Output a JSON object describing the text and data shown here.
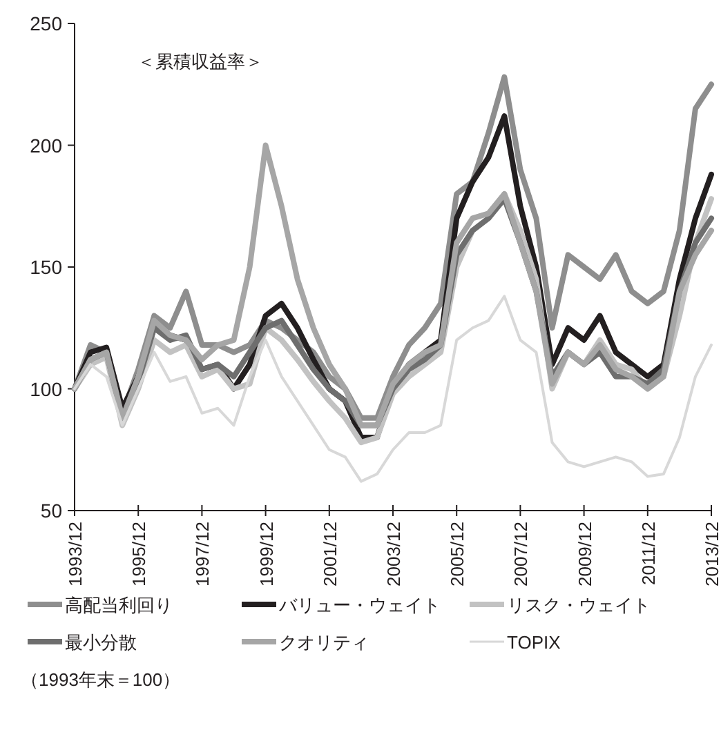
{
  "chart_data": {
    "type": "line",
    "annotations": [
      "＜累積収益率＞",
      "（1993年末＝100）"
    ],
    "x": [
      "1993-12",
      "1994-06",
      "1994-12",
      "1995-06",
      "1995-12",
      "1996-06",
      "1996-12",
      "1997-06",
      "1997-12",
      "1998-06",
      "1998-12",
      "1999-06",
      "1999-12",
      "2000-06",
      "2000-12",
      "2001-06",
      "2001-12",
      "2002-06",
      "2002-12",
      "2003-06",
      "2003-12",
      "2004-06",
      "2004-12",
      "2005-06",
      "2005-12",
      "2006-06",
      "2006-12",
      "2007-06",
      "2007-12",
      "2008-06",
      "2008-12",
      "2009-06",
      "2009-12",
      "2010-06",
      "2010-12",
      "2011-06",
      "2011-12",
      "2012-06",
      "2012-12",
      "2013-06",
      "2013-12"
    ],
    "series": [
      {
        "name": "高配当利回り",
        "color": "#8e8e8e",
        "values": [
          100,
          118,
          115,
          90,
          108,
          130,
          125,
          140,
          118,
          118,
          115,
          118,
          128,
          125,
          120,
          115,
          105,
          100,
          88,
          88,
          105,
          118,
          125,
          135,
          180,
          185,
          205,
          228,
          190,
          170,
          125,
          155,
          150,
          145,
          155,
          140,
          135,
          140,
          165,
          215,
          225
        ]
      },
      {
        "name": "バリュー・ウェイト",
        "color": "#231f20",
        "values": [
          100,
          115,
          117,
          92,
          105,
          125,
          122,
          120,
          108,
          110,
          100,
          110,
          130,
          135,
          125,
          112,
          100,
          95,
          80,
          80,
          100,
          110,
          115,
          120,
          170,
          185,
          195,
          212,
          175,
          150,
          110,
          125,
          120,
          130,
          115,
          110,
          105,
          110,
          145,
          170,
          188
        ]
      },
      {
        "name": "リスク・ウェイト",
        "color": "#c2c2c2",
        "values": [
          100,
          110,
          113,
          85,
          100,
          120,
          115,
          118,
          105,
          108,
          100,
          102,
          125,
          120,
          112,
          103,
          95,
          88,
          78,
          80,
          98,
          105,
          110,
          115,
          150,
          165,
          170,
          180,
          165,
          145,
          100,
          115,
          110,
          120,
          110,
          108,
          100,
          105,
          130,
          160,
          178
        ]
      },
      {
        "name": "最小分散",
        "color": "#6e6e6e",
        "values": [
          100,
          112,
          115,
          88,
          103,
          125,
          120,
          122,
          108,
          110,
          105,
          115,
          125,
          128,
          118,
          108,
          100,
          95,
          85,
          85,
          100,
          108,
          112,
          118,
          155,
          165,
          170,
          178,
          160,
          140,
          105,
          115,
          110,
          115,
          105,
          105,
          102,
          108,
          140,
          160,
          170
        ]
      },
      {
        "name": "クオリティ",
        "color": "#a6a6a6",
        "values": [
          100,
          112,
          115,
          88,
          105,
          128,
          122,
          120,
          112,
          118,
          120,
          150,
          200,
          175,
          145,
          125,
          110,
          100,
          85,
          85,
          102,
          110,
          115,
          118,
          160,
          170,
          172,
          180,
          160,
          140,
          102,
          115,
          110,
          118,
          108,
          105,
          100,
          105,
          140,
          155,
          165
        ]
      },
      {
        "name": "TOPIX",
        "color": "#d8d8d8",
        "values": [
          100,
          110,
          105,
          85,
          100,
          115,
          103,
          105,
          90,
          92,
          85,
          105,
          120,
          105,
          95,
          85,
          75,
          72,
          62,
          65,
          75,
          82,
          82,
          85,
          120,
          125,
          128,
          138,
          120,
          115,
          78,
          70,
          68,
          70,
          72,
          70,
          64,
          65,
          80,
          105,
          118
        ]
      }
    ],
    "xlim": [
      "1993-12",
      "2013-12"
    ],
    "xticks": [
      {
        "value": "1993-12",
        "label": "1993/12"
      },
      {
        "value": "1995-12",
        "label": "1995/12"
      },
      {
        "value": "1997-12",
        "label": "1997/12"
      },
      {
        "value": "1999-12",
        "label": "1999/12"
      },
      {
        "value": "2001-12",
        "label": "2001/12"
      },
      {
        "value": "2003-12",
        "label": "2003/12"
      },
      {
        "value": "2005-12",
        "label": "2005/12"
      },
      {
        "value": "2007-12",
        "label": "2007/12"
      },
      {
        "value": "2009-12",
        "label": "2009/12"
      },
      {
        "value": "2011-12",
        "label": "2011/12"
      },
      {
        "value": "2013-12",
        "label": "2013/12"
      }
    ],
    "ylim": [
      50,
      250
    ],
    "yticks": [
      50,
      100,
      150,
      200,
      250
    ],
    "legend": "bottom"
  }
}
